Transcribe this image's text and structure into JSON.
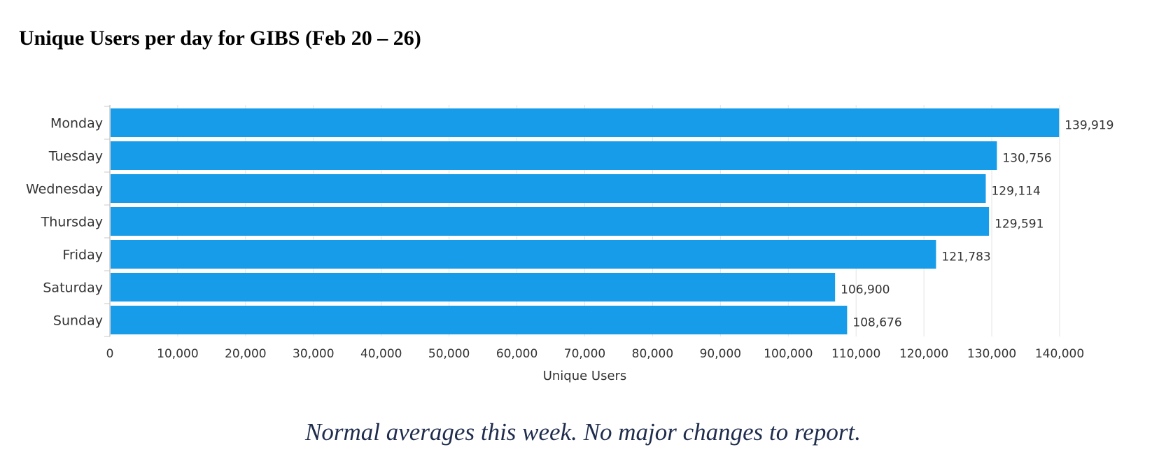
{
  "page": {
    "title": "Unique Users per day for GIBS (Feb 20 – 26)",
    "comment": "Normal averages this week.  No major changes to report."
  },
  "chart_data": {
    "type": "bar",
    "orientation": "horizontal",
    "categories": [
      "Monday",
      "Tuesday",
      "Wednesday",
      "Thursday",
      "Friday",
      "Saturday",
      "Sunday"
    ],
    "values": [
      139919,
      130756,
      129114,
      129591,
      121783,
      106900,
      108676
    ],
    "data_labels": [
      "139,919",
      "130,756",
      "129,114",
      "129,591",
      "121,783",
      "106,900",
      "108,676"
    ],
    "xlabel": "Unique Users",
    "ylabel": "",
    "xlim": [
      0,
      140000
    ],
    "xticks": [
      0,
      10000,
      20000,
      30000,
      40000,
      50000,
      60000,
      70000,
      80000,
      90000,
      100000,
      110000,
      120000,
      130000,
      140000
    ],
    "xtick_labels": [
      "0",
      "10,000",
      "20,000",
      "30,000",
      "40,000",
      "50,000",
      "60,000",
      "70,000",
      "80,000",
      "90,000",
      "100,000",
      "110,000",
      "120,000",
      "130,000",
      "140,000"
    ],
    "grid": "vertical",
    "legend": "none",
    "bar_color": "#179ce9",
    "grid_color": "#e3e3e3",
    "axis_color": "#c8c8c8",
    "text_color": "#333333"
  }
}
